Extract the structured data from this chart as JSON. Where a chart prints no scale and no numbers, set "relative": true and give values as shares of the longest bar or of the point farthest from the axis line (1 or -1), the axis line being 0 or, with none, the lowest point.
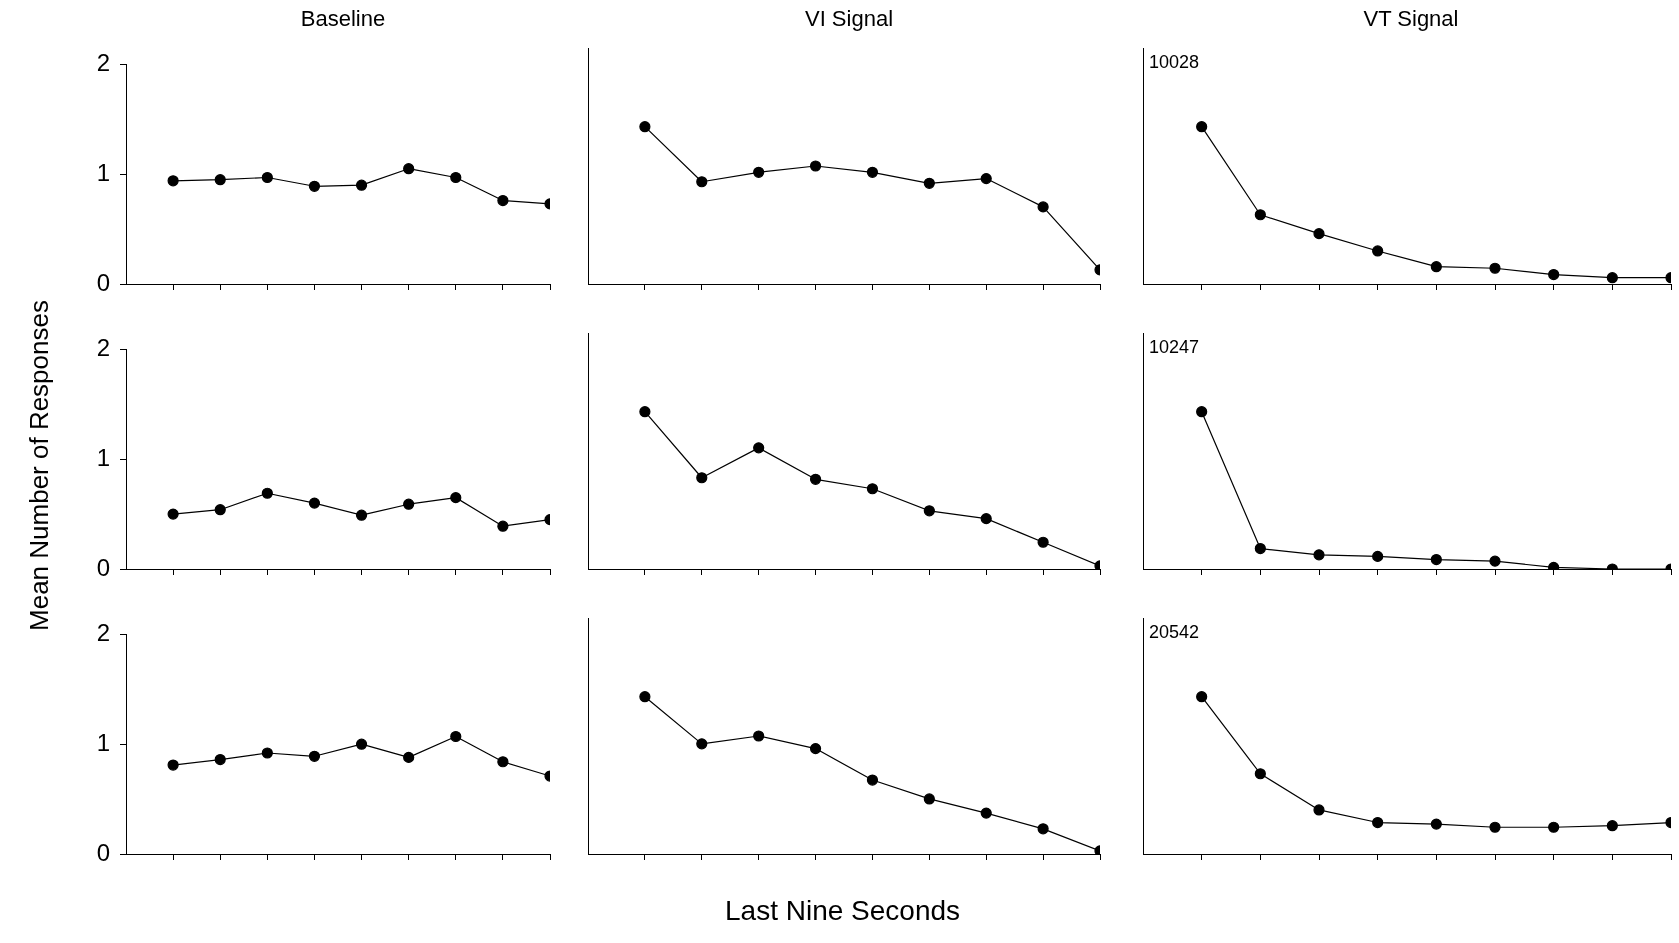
{
  "chart_data": [
    {
      "type": "line",
      "title": "Baseline",
      "categories": [
        null,
        null,
        null,
        null,
        null,
        null,
        null,
        null,
        null
      ],
      "series": [
        {
          "color": "#000000",
          "values": [
            0.94,
            0.95,
            0.97,
            0.89,
            0.9,
            1.05,
            0.97,
            0.76,
            0.73
          ]
        }
      ],
      "ylim": [
        0,
        2
      ],
      "yticks": [
        0,
        1,
        2
      ],
      "tick_labels": "y",
      "grid": false,
      "legend": false,
      "marker": "circle",
      "line_style": "solid"
    },
    {
      "type": "line",
      "title": "VI Signal",
      "relative": true,
      "categories": [
        null,
        null,
        null,
        null,
        null,
        null,
        null,
        null,
        null
      ],
      "series": [
        {
          "color": "#000000",
          "values": [
            1,
            0.65,
            0.71,
            0.75,
            0.71,
            0.64,
            0.67,
            0.49,
            0.09
          ]
        }
      ],
      "tick_labels": false,
      "grid": false,
      "legend": false,
      "marker": "circle",
      "line_style": "solid"
    },
    {
      "type": "line",
      "title": "VT Signal",
      "relative": true,
      "categories": [
        null,
        null,
        null,
        null,
        null,
        null,
        null,
        null,
        null
      ],
      "series": [
        {
          "color": "#000000",
          "values": [
            1,
            0.44,
            0.32,
            0.21,
            0.11,
            0.1,
            0.06,
            0.04,
            0.04
          ]
        }
      ],
      "tick_labels": false,
      "grid": false,
      "legend": false,
      "marker": "circle",
      "line_style": "solid",
      "annotations": [
        "10028"
      ]
    },
    {
      "type": "line",
      "ylabel": "Mean Number of Responses",
      "categories": [
        null,
        null,
        null,
        null,
        null,
        null,
        null,
        null,
        null
      ],
      "series": [
        {
          "color": "#000000",
          "values": [
            0.5,
            0.54,
            0.69,
            0.6,
            0.49,
            0.59,
            0.65,
            0.39,
            0.45
          ]
        }
      ],
      "ylim": [
        0,
        2
      ],
      "yticks": [
        0,
        1,
        2
      ],
      "tick_labels": "y",
      "grid": false,
      "legend": false,
      "marker": "circle",
      "line_style": "solid"
    },
    {
      "type": "line",
      "relative": true,
      "categories": [
        null,
        null,
        null,
        null,
        null,
        null,
        null,
        null,
        null
      ],
      "series": [
        {
          "color": "#000000",
          "values": [
            1,
            0.58,
            0.77,
            0.57,
            0.51,
            0.37,
            0.32,
            0.17,
            0.02
          ]
        }
      ],
      "tick_labels": false,
      "grid": false,
      "legend": false,
      "marker": "circle",
      "line_style": "solid"
    },
    {
      "type": "line",
      "relative": true,
      "categories": [
        null,
        null,
        null,
        null,
        null,
        null,
        null,
        null,
        null
      ],
      "series": [
        {
          "color": "#000000",
          "values": [
            1,
            0.13,
            0.09,
            0.08,
            0.06,
            0.05,
            0.01,
            0,
            0
          ]
        }
      ],
      "tick_labels": false,
      "grid": false,
      "legend": false,
      "marker": "circle",
      "line_style": "solid",
      "annotations": [
        "10247"
      ]
    },
    {
      "type": "line",
      "categories": [
        null,
        null,
        null,
        null,
        null,
        null,
        null,
        null,
        null
      ],
      "series": [
        {
          "color": "#000000",
          "values": [
            0.81,
            0.86,
            0.92,
            0.89,
            1.0,
            0.88,
            1.07,
            0.84,
            0.71
          ]
        }
      ],
      "ylim": [
        0,
        2
      ],
      "yticks": [
        0,
        1,
        2
      ],
      "tick_labels": "y",
      "grid": false,
      "legend": false,
      "marker": "circle",
      "line_style": "solid"
    },
    {
      "type": "line",
      "xlabel": "Last Nine Seconds",
      "relative": true,
      "categories": [
        null,
        null,
        null,
        null,
        null,
        null,
        null,
        null,
        null
      ],
      "series": [
        {
          "color": "#000000",
          "values": [
            1,
            0.7,
            0.75,
            0.67,
            0.47,
            0.35,
            0.26,
            0.16,
            0.02
          ]
        }
      ],
      "tick_labels": false,
      "grid": false,
      "legend": false,
      "marker": "circle",
      "line_style": "solid"
    },
    {
      "type": "line",
      "relative": true,
      "categories": [
        null,
        null,
        null,
        null,
        null,
        null,
        null,
        null,
        null
      ],
      "series": [
        {
          "color": "#000000",
          "values": [
            1,
            0.51,
            0.28,
            0.2,
            0.19,
            0.17,
            0.17,
            0.18,
            0.2
          ]
        }
      ],
      "tick_labels": false,
      "grid": false,
      "legend": false,
      "marker": "circle",
      "line_style": "solid",
      "annotations": [
        "20542"
      ]
    }
  ]
}
